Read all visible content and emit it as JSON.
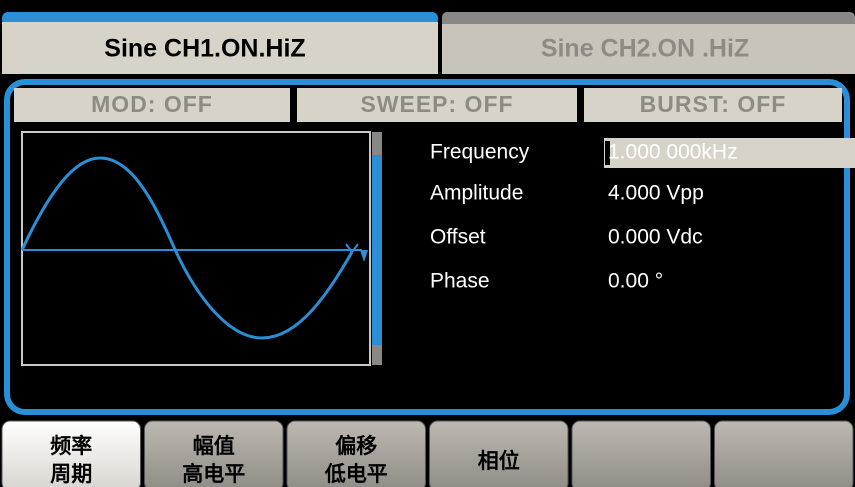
{
  "tabs": [
    "Sine CH1.ON.HiZ",
    "Sine CH2.ON .HiZ"
  ],
  "mode_bar": [
    "MOD:  OFF",
    "SWEEP:  OFF",
    "BURST:  OFF"
  ],
  "parameters": [
    {
      "label": "Frequency",
      "value": "1.000 000kHz"
    },
    {
      "label": "Amplitude",
      "value": "4.000 Vpp"
    },
    {
      "label": "Offset",
      "value": "0.000 Vdc"
    },
    {
      "label": "Phase",
      "value": "0.00 °"
    }
  ],
  "softkeys": [
    [
      "频率",
      "周期"
    ],
    [
      "幅值",
      "高电平"
    ],
    [
      "偏移",
      "低电平"
    ],
    [
      "相位"
    ]
  ]
}
